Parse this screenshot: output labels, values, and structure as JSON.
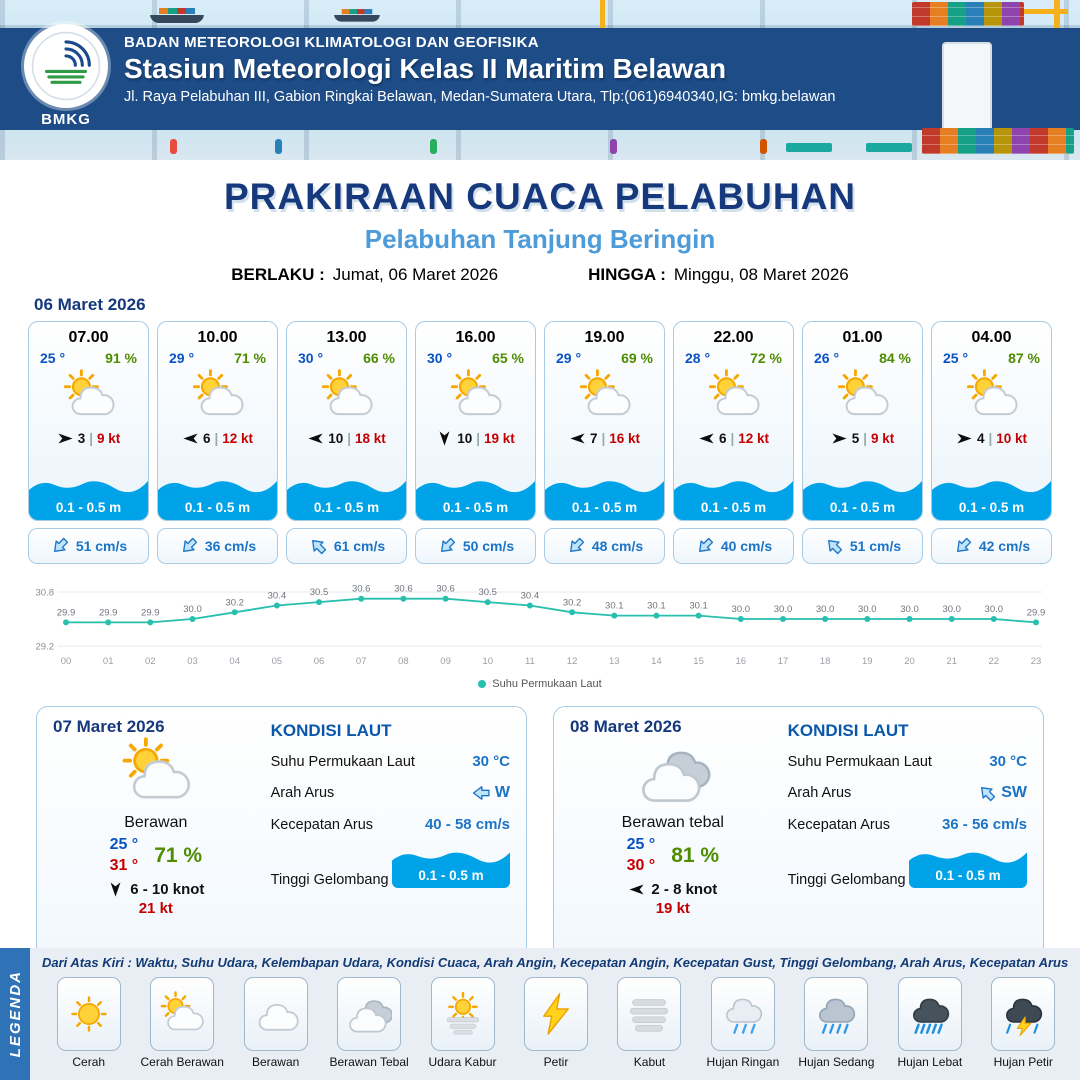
{
  "header": {
    "agency": "BADAN METEOROLOGI KLIMATOLOGI DAN GEOFISIKA",
    "station": "Stasiun Meteorologi Kelas II Maritim Belawan",
    "address": "Jl. Raya Pelabuhan III, Gabion Ringkai Belawan, Medan-Sumatera Utara, Tlp:(061)6940340,IG: bmkg.belawan",
    "logo_text": "BMKG"
  },
  "title": {
    "main": "PRAKIRAAN CUACA PELABUHAN",
    "subtitle": "Pelabuhan Tanjung Beringin",
    "valid_label": "BERLAKU :",
    "valid_value": "Jumat, 06 Maret 2026",
    "until_label": "HINGGA :",
    "until_value": "Minggu, 08 Maret 2026"
  },
  "forecast_date": "06 Maret 2026",
  "hourly": [
    {
      "time": "07.00",
      "temp": "25 °",
      "rh": "91 %",
      "icon": "cerah-berawan",
      "wind_speed": "3",
      "gust": "9 kt",
      "wave": "0.1 - 0.5 m",
      "current": "51 cm/s",
      "wind_dir_deg": 0,
      "current_dir_deg": -45
    },
    {
      "time": "10.00",
      "temp": "29 °",
      "rh": "71 %",
      "icon": "cerah-berawan",
      "wind_speed": "6",
      "gust": "12 kt",
      "wave": "0.1 - 0.5 m",
      "current": "36 cm/s",
      "wind_dir_deg": 180,
      "current_dir_deg": -45
    },
    {
      "time": "13.00",
      "temp": "30 °",
      "rh": "66 %",
      "icon": "cerah-berawan",
      "wind_speed": "10",
      "gust": "18 kt",
      "wave": "0.1 - 0.5 m",
      "current": "61 cm/s",
      "wind_dir_deg": 180,
      "current_dir_deg": 45
    },
    {
      "time": "16.00",
      "temp": "30 °",
      "rh": "65 %",
      "icon": "cerah-berawan",
      "wind_speed": "10",
      "gust": "19 kt",
      "wave": "0.1 - 0.5 m",
      "current": "50 cm/s",
      "wind_dir_deg": 90,
      "current_dir_deg": -45
    },
    {
      "time": "19.00",
      "temp": "29 °",
      "rh": "69 %",
      "icon": "cerah-berawan",
      "wind_speed": "7",
      "gust": "16 kt",
      "wave": "0.1 - 0.5 m",
      "current": "48 cm/s",
      "wind_dir_deg": 180,
      "current_dir_deg": -45
    },
    {
      "time": "22.00",
      "temp": "28 °",
      "rh": "72 %",
      "icon": "cerah-berawan",
      "wind_speed": "6",
      "gust": "12 kt",
      "wave": "0.1 - 0.5 m",
      "current": "40 cm/s",
      "wind_dir_deg": 180,
      "current_dir_deg": -45
    },
    {
      "time": "01.00",
      "temp": "26 °",
      "rh": "84 %",
      "icon": "cerah-berawan",
      "wind_speed": "5",
      "gust": "9 kt",
      "wave": "0.1 - 0.5 m",
      "current": "51 cm/s",
      "wind_dir_deg": 0,
      "current_dir_deg": 45
    },
    {
      "time": "04.00",
      "temp": "25 °",
      "rh": "87 %",
      "icon": "cerah-berawan",
      "wind_speed": "4",
      "gust": "10 kt",
      "wave": "0.1 - 0.5 m",
      "current": "42 cm/s",
      "wind_dir_deg": 0,
      "current_dir_deg": -45
    }
  ],
  "chart_data": {
    "type": "line",
    "title": "",
    "x": [
      "00",
      "01",
      "02",
      "03",
      "04",
      "05",
      "06",
      "07",
      "08",
      "09",
      "10",
      "11",
      "12",
      "13",
      "14",
      "15",
      "16",
      "17",
      "18",
      "19",
      "20",
      "21",
      "22",
      "23"
    ],
    "series": [
      {
        "name": "Suhu Permukaan Laut",
        "values": [
          29.9,
          29.9,
          29.9,
          30.0,
          30.2,
          30.4,
          30.5,
          30.6,
          30.6,
          30.6,
          30.5,
          30.4,
          30.2,
          30.1,
          30.1,
          30.1,
          30.0,
          30.0,
          30.0,
          30.0,
          30.0,
          30.0,
          30.0,
          29.9
        ]
      }
    ],
    "ylim": [
      29.2,
      30.8
    ],
    "legend_position": "bottom",
    "grid": false,
    "line_color": "#27bfae"
  },
  "daily": [
    {
      "date": "07 Maret 2026",
      "icon": "cerah-berawan",
      "condition": "Berawan",
      "temp_min": "25 °",
      "temp_max": "31 °",
      "rh": "71 %",
      "wind_range": "6 - 10 knot",
      "gust": "21 kt",
      "wind_dir_deg": 90,
      "sea": {
        "title": "KONDISI LAUT",
        "sst_label": "Suhu Permukaan Laut",
        "sst": "30 °C",
        "dir_label": "Arah Arus",
        "dir": "W",
        "dir_deg": 0,
        "speed_label": "Kecepatan Arus",
        "speed": "40 - 58 cm/s",
        "wave_label": "Tinggi Gelombang",
        "wave": "0.1 - 0.5 m"
      }
    },
    {
      "date": "08 Maret 2026",
      "icon": "berawan-tebal",
      "condition": "Berawan tebal",
      "temp_min": "25 °",
      "temp_max": "30 °",
      "rh": "81 %",
      "wind_range": "2 - 8 knot",
      "gust": "19 kt",
      "wind_dir_deg": 180,
      "sea": {
        "title": "KONDISI LAUT",
        "sst_label": "Suhu Permukaan Laut",
        "sst": "30 °C",
        "dir_label": "Arah Arus",
        "dir": "SW",
        "dir_deg": 45,
        "speed_label": "Kecepatan Arus",
        "speed": "36 - 56 cm/s",
        "wave_label": "Tinggi Gelombang",
        "wave": "0.1 - 0.5 m"
      }
    }
  ],
  "legend": {
    "title": "LEGENDA",
    "description": "Dari Atas Kiri : Waktu, Suhu Udara, Kelembapan Udara, Kondisi Cuaca, Arah Angin, Kecepatan Angin, Kecepatan Gust, Tinggi Gelombang, Arah Arus, Kecepatan Arus",
    "items": [
      {
        "label": "Cerah",
        "icon": "cerah"
      },
      {
        "label": "Cerah Berawan",
        "icon": "cerah-berawan"
      },
      {
        "label": "Berawan",
        "icon": "berawan"
      },
      {
        "label": "Berawan Tebal",
        "icon": "berawan-tebal"
      },
      {
        "label": "Udara Kabur",
        "icon": "udara-kabur"
      },
      {
        "label": "Petir",
        "icon": "petir"
      },
      {
        "label": "Kabut",
        "icon": "kabut"
      },
      {
        "label": "Hujan Ringan",
        "icon": "hujan-ringan"
      },
      {
        "label": "Hujan Sedang",
        "icon": "hujan-sedang"
      },
      {
        "label": "Hujan Lebat",
        "icon": "hujan-lebat"
      },
      {
        "label": "Hujan Petir",
        "icon": "hujan-petir"
      }
    ]
  },
  "colors": {
    "band_blue": "#1d4c87",
    "title_navy": "#16387c",
    "subtitle_blue": "#4d9bd8",
    "temp_blue": "#0a53c4",
    "humidity_green": "#4e8c00",
    "gust_red": "#c40000",
    "wave_blue": "#00a3e8",
    "current_blue": "#1b74c5",
    "chart_teal": "#27bfae",
    "legend_strip_blue": "#2f73b6"
  }
}
